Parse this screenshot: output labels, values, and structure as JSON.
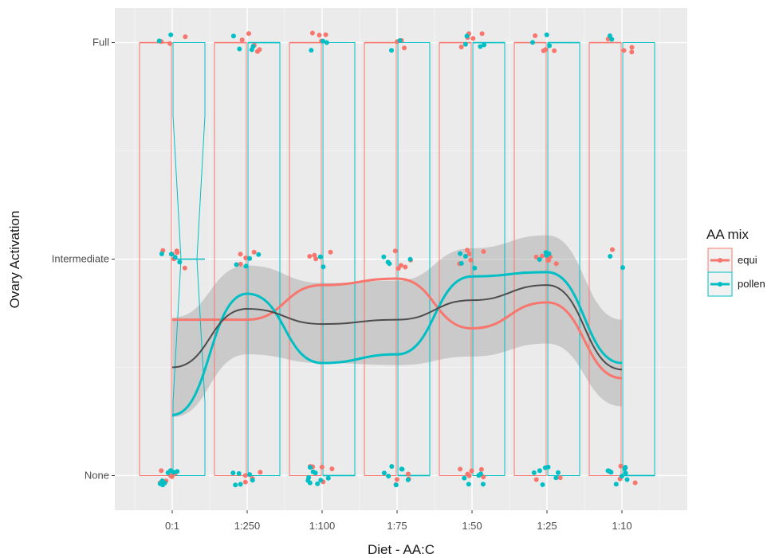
{
  "chart_data": {
    "type": "boxplot-jitter-smooth",
    "xlabel": "Diet - AA:C",
    "ylabel": "Ovary Activation",
    "categories": [
      "0:1",
      "1:250",
      "1:100",
      "1:75",
      "1:50",
      "1:25",
      "1:10"
    ],
    "y_levels": [
      "None",
      "Intermediate",
      "Full"
    ],
    "y_values": [
      1,
      2,
      3
    ],
    "ylim": [
      0.84,
      3.16
    ],
    "grid": true,
    "legend": {
      "title": "AA mix",
      "position": "right",
      "entries": [
        {
          "label": "equi",
          "color": "#F8766D"
        },
        {
          "label": "pollen",
          "color": "#00BFC4"
        }
      ]
    },
    "overall_smooth": {
      "color": "#4d4d4d",
      "values": [
        1.5,
        1.77,
        1.7,
        1.72,
        1.81,
        1.88,
        1.49
      ],
      "ci_band": {
        "lower": [
          1.27,
          1.56,
          1.52,
          1.51,
          1.55,
          1.61,
          1.32
        ],
        "upper": [
          1.73,
          1.97,
          1.89,
          1.9,
          2.05,
          2.11,
          1.72
        ]
      }
    },
    "series": [
      {
        "name": "equi",
        "color": "#F8766D",
        "smooth": [
          1.72,
          1.72,
          1.88,
          1.91,
          1.68,
          1.8,
          1.45
        ],
        "box": {
          "q1": [
            1,
            1,
            1,
            1,
            1,
            1,
            1
          ],
          "median": [
            3,
            3,
            3,
            3,
            3,
            3,
            3
          ],
          "q3": [
            3,
            3,
            3,
            3,
            3,
            3,
            3
          ]
        },
        "points": {
          "none": [
            6,
            4,
            5,
            4,
            6,
            2,
            5
          ],
          "intermediate": [
            6,
            4,
            4,
            5,
            5,
            6,
            1
          ],
          "full": [
            3,
            5,
            4,
            3,
            5,
            4,
            4
          ]
        }
      },
      {
        "name": "pollen",
        "color": "#00BFC4",
        "smooth": [
          1.28,
          1.84,
          1.52,
          1.56,
          1.92,
          1.94,
          1.52
        ],
        "box": {
          "q1": [
            1,
            1,
            1,
            1,
            1,
            1,
            1
          ],
          "median": [
            2,
            3,
            1,
            1,
            3,
            3,
            1
          ],
          "q3": [
            3,
            3,
            3,
            3,
            3,
            3,
            3
          ]
        },
        "points": {
          "none": [
            8,
            6,
            9,
            7,
            5,
            7,
            9
          ],
          "intermediate": [
            4,
            4,
            2,
            4,
            4,
            4,
            2
          ],
          "full": [
            2,
            4,
            3,
            2,
            4,
            3,
            2
          ]
        }
      }
    ]
  }
}
